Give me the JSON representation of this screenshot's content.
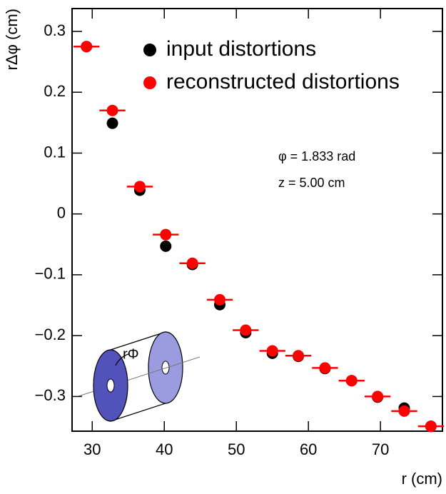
{
  "chart_data": {
    "type": "scatter",
    "x_label": "r (cm)",
    "y_label": "rΔφ (cm)",
    "annotations": [
      "φ = 1.833 rad",
      "z = 5.00 cm",
      "rΦ"
    ],
    "xlim": [
      27.2,
      78.6
    ],
    "ylim": [
      -0.357,
      0.3375
    ],
    "xticks": [
      30,
      40,
      50,
      60,
      70
    ],
    "yticks": [
      0.3,
      0.2,
      0.1,
      0,
      {
        "value": -0.1,
        "label": "−0.1"
      },
      {
        "value": -0.2,
        "label": "−0.2"
      },
      {
        "value": -0.3,
        "label": "−0.3"
      }
    ],
    "series": [
      {
        "name": "input distortions",
        "color": "#000000",
        "x": [
          29.2,
          32.8,
          36.6,
          40.2,
          43.9,
          47.7,
          51.3,
          55.0,
          58.6,
          62.3,
          66.0,
          69.6,
          73.3,
          77.0
        ],
        "values": [
          0.275,
          0.149,
          0.039,
          -0.053,
          -0.083,
          -0.149,
          -0.195,
          -0.229,
          -0.234,
          -0.254,
          -0.274,
          -0.301,
          -0.319,
          -0.349
        ]
      },
      {
        "name": "reconstructed distortions",
        "color": "#ff0000",
        "x": [
          29.2,
          32.8,
          36.6,
          40.2,
          43.9,
          47.7,
          51.3,
          55.0,
          58.6,
          62.3,
          66.0,
          69.6,
          73.3,
          77.0
        ],
        "values": [
          0.275,
          0.17,
          0.045,
          -0.034,
          -0.081,
          -0.141,
          -0.191,
          -0.225,
          -0.233,
          -0.253,
          -0.274,
          -0.3,
          -0.324,
          -0.349
        ],
        "xerr": [
          1.8,
          1.8,
          1.8,
          1.8,
          1.8,
          1.8,
          1.8,
          1.8,
          1.8,
          1.8,
          1.8,
          1.8,
          1.8,
          1.8
        ]
      }
    ]
  }
}
